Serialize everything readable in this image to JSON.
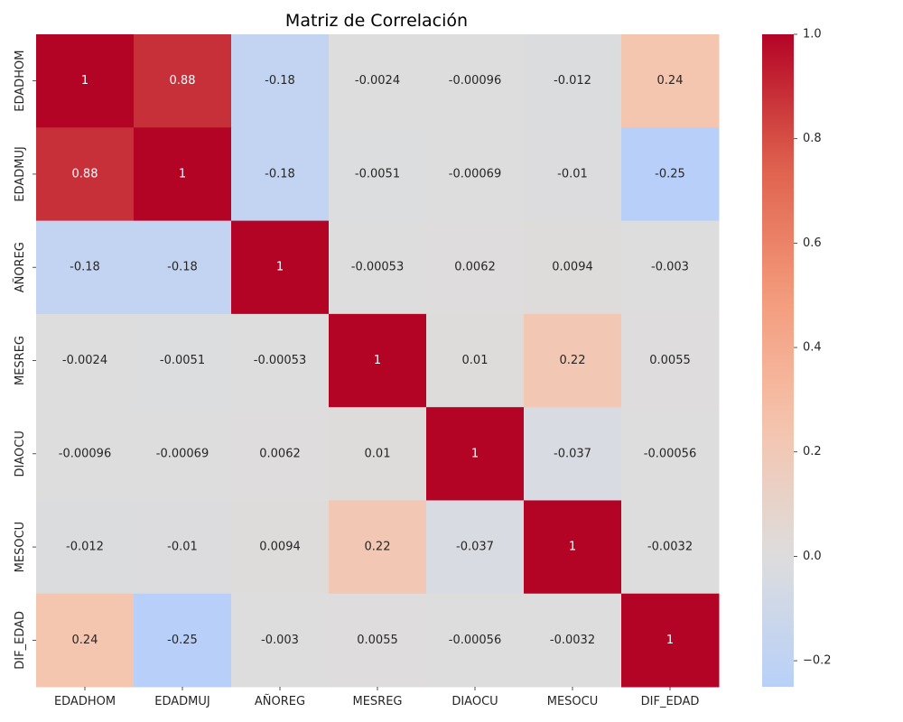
{
  "chart_data": {
    "type": "heatmap",
    "title": "Matriz de Correlación",
    "x_labels": [
      "EDADHOM",
      "EDADMUJ",
      "AÑOREG",
      "MESREG",
      "DIAOCU",
      "MESOCU",
      "DIF_EDAD"
    ],
    "y_labels": [
      "EDADHOM",
      "EDADMUJ",
      "AÑOREG",
      "MESREG",
      "DIAOCU",
      "MESOCU",
      "DIF_EDAD"
    ],
    "values": [
      [
        1,
        0.88,
        -0.18,
        -0.0024,
        -0.00096,
        -0.012,
        0.24
      ],
      [
        0.88,
        1,
        -0.18,
        -0.0051,
        -0.00069,
        -0.01,
        -0.25
      ],
      [
        -0.18,
        -0.18,
        1,
        -0.00053,
        0.0062,
        0.0094,
        -0.003
      ],
      [
        -0.0024,
        -0.0051,
        -0.00053,
        1,
        0.01,
        0.22,
        0.0055
      ],
      [
        -0.00096,
        -0.00069,
        0.0062,
        0.01,
        1,
        -0.037,
        -0.00056
      ],
      [
        -0.012,
        -0.01,
        0.0094,
        0.22,
        -0.037,
        1,
        -0.0032
      ],
      [
        0.24,
        -0.25,
        -0.003,
        0.0055,
        -0.00056,
        -0.0032,
        1
      ]
    ],
    "cell_labels": [
      [
        "1",
        "0.88",
        "-0.18",
        "-0.0024",
        "-0.00096",
        "-0.012",
        "0.24"
      ],
      [
        "0.88",
        "1",
        "-0.18",
        "-0.0051",
        "-0.00069",
        "-0.01",
        "-0.25"
      ],
      [
        "-0.18",
        "-0.18",
        "1",
        "-0.00053",
        "0.0062",
        "0.0094",
        "-0.003"
      ],
      [
        "-0.0024",
        "-0.0051",
        "-0.00053",
        "1",
        "0.01",
        "0.22",
        "0.0055"
      ],
      [
        "-0.00096",
        "-0.00069",
        "0.0062",
        "0.01",
        "1",
        "-0.037",
        "-0.00056"
      ],
      [
        "-0.012",
        "-0.01",
        "0.0094",
        "0.22",
        "-0.037",
        "1",
        "-0.0032"
      ],
      [
        "0.24",
        "-0.25",
        "-0.003",
        "0.0055",
        "-0.00056",
        "-0.0032",
        "1"
      ]
    ],
    "colormap": "coolwarm",
    "colormap_center": 0,
    "vmin": -0.25,
    "vmax": 1.0,
    "colorbar_ticks": [
      1.0,
      0.8,
      0.6,
      0.4,
      0.2,
      0.0,
      -0.2
    ],
    "colorbar_tick_labels": [
      "1.0",
      "0.8",
      "0.6",
      "0.4",
      "0.2",
      "0.0",
      "−0.2"
    ],
    "colorbar_position": "right",
    "annotated": true,
    "grid": false
  }
}
